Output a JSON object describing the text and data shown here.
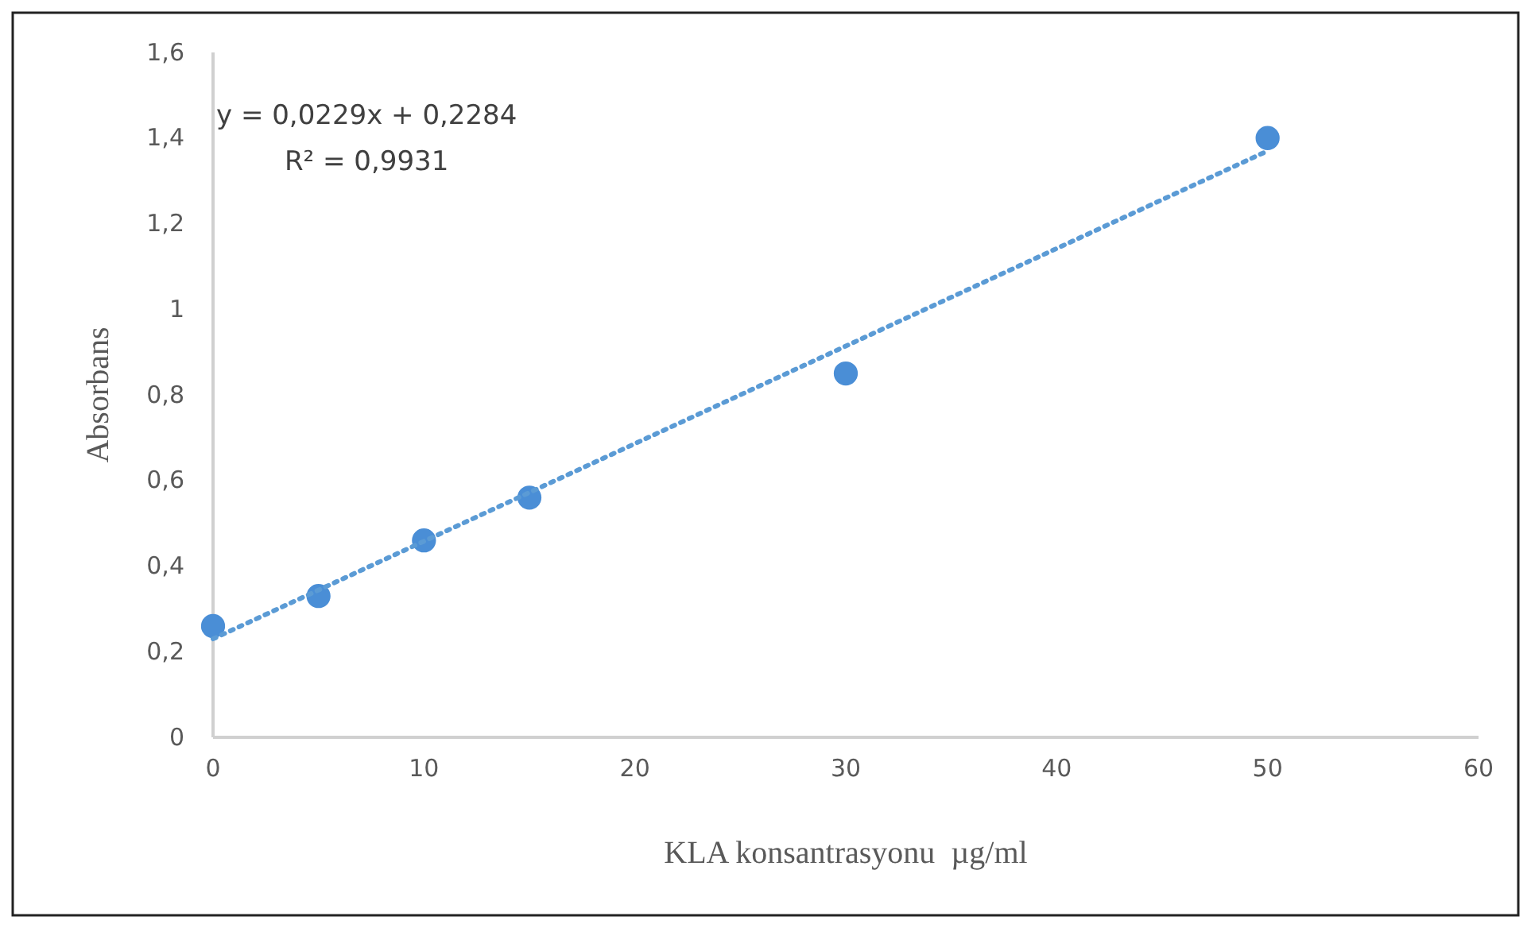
{
  "chart_data": {
    "type": "scatter",
    "xlabel": "KLA konsantrasyonu  µg/ml",
    "ylabel": "Absorbans",
    "x": [
      0,
      5,
      10,
      15,
      30,
      50
    ],
    "series": [
      {
        "color": "#4a8ed6",
        "values": [
          0.26,
          0.33,
          0.46,
          0.56,
          0.85,
          1.4
        ],
        "marker": "circle"
      },
      {
        "type": "line",
        "color": "#5b9bd5",
        "x": [
          0,
          50
        ],
        "values": [
          0.23,
          1.37
        ],
        "line_style": "dotted",
        "marker": "none"
      }
    ],
    "xlim": [
      0,
      60
    ],
    "xticks": [
      0,
      10,
      20,
      30,
      40,
      50,
      60
    ],
    "ylim": [
      0,
      1.6
    ],
    "yticks": [
      0,
      {
        "value": 0.2,
        "label": "0,2"
      },
      {
        "value": 0.4,
        "label": "0,4"
      },
      {
        "value": 0.6,
        "label": "0,6"
      },
      {
        "value": 0.8,
        "label": "0,8"
      },
      1,
      {
        "value": 1.2,
        "label": "1,2"
      },
      {
        "value": 1.4,
        "label": "1,4"
      },
      {
        "value": 1.6,
        "label": "1,6"
      }
    ],
    "annotations": [
      "y = 0,0229x + 0,2284",
      "R² = 0,9931"
    ],
    "grid": false
  }
}
